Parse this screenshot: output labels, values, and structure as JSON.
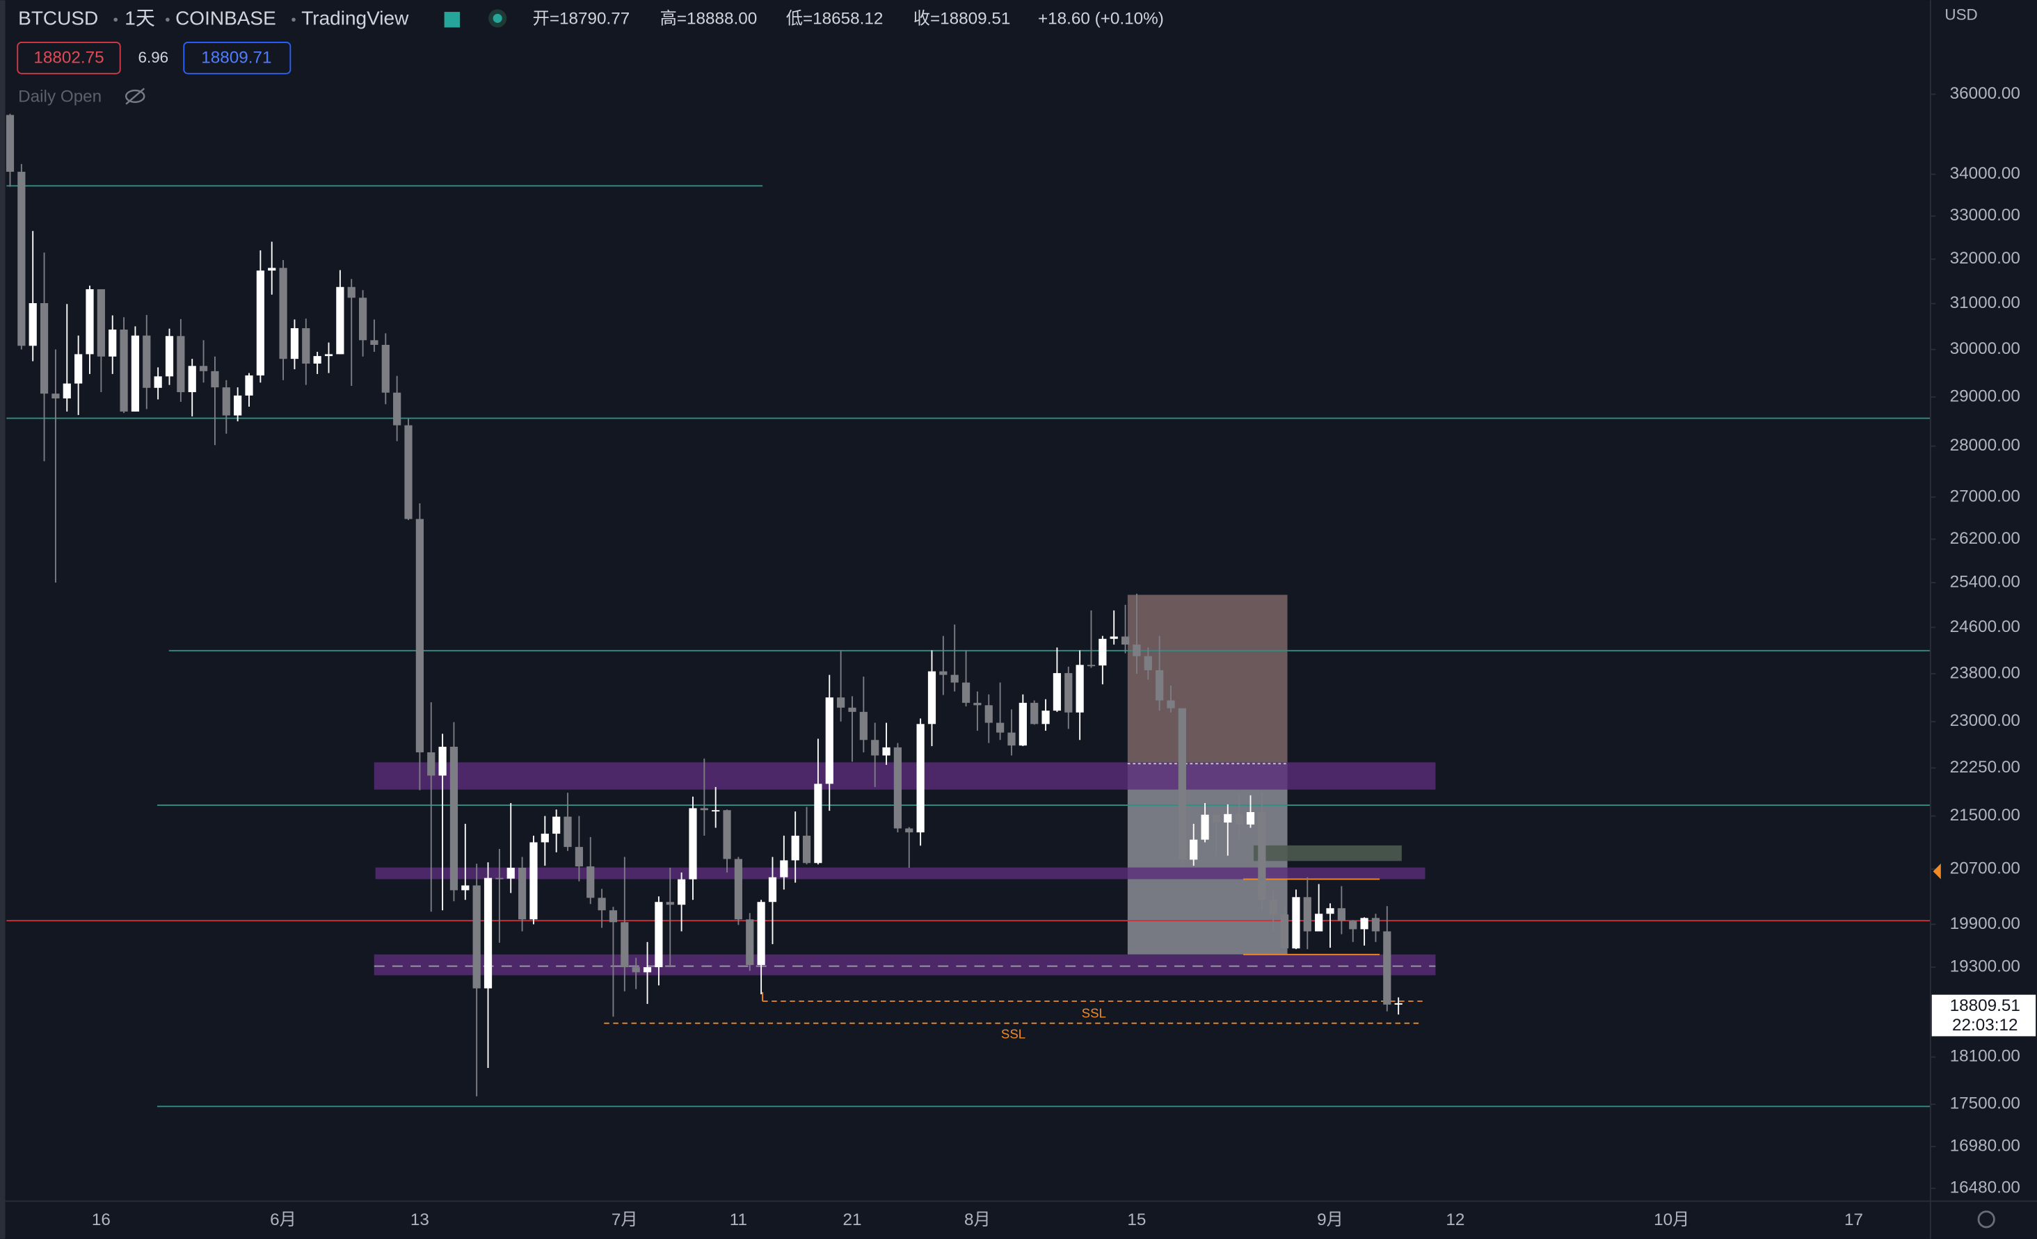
{
  "header": {
    "symbol": "BTCUSD",
    "interval": "1天",
    "exchange": "COINBASE",
    "source": "TradingView",
    "open": "开=18790.77",
    "high": "高=18888.00",
    "low": "低=18658.12",
    "close": "收=18809.51",
    "change": "+18.60 (+0.10%)",
    "sell_price": "18802.75",
    "spread": "6.96",
    "buy_price": "18809.71",
    "indicator": "Daily Open",
    "currency": "USD"
  },
  "price_badge": {
    "price": "18809.51",
    "countdown": "22:03:12"
  },
  "annotations": [
    "SSL",
    "SSL"
  ],
  "chart_data": {
    "type": "candlestick",
    "log": true,
    "grid": false,
    "up_color": "#ffffff",
    "down_color": "#7d7e84",
    "ylim": [
      16330,
      38500
    ],
    "yticks": [
      {
        "value": 36000,
        "label": "36000.00"
      },
      {
        "value": 34000,
        "label": "34000.00"
      },
      {
        "value": 33000,
        "label": "33000.00"
      },
      {
        "value": 32000,
        "label": "32000.00"
      },
      {
        "value": 31000,
        "label": "31000.00"
      },
      {
        "value": 30000,
        "label": "30000.00"
      },
      {
        "value": 29000,
        "label": "29000.00"
      },
      {
        "value": 28000,
        "label": "28000.00"
      },
      {
        "value": 27000,
        "label": "27000.00"
      },
      {
        "value": 26200,
        "label": "26200.00"
      },
      {
        "value": 25400,
        "label": "25400.00"
      },
      {
        "value": 24600,
        "label": "24600.00"
      },
      {
        "value": 23800,
        "label": "23800.00"
      },
      {
        "value": 23000,
        "label": "23000.00"
      },
      {
        "value": 22250,
        "label": "22250.00"
      },
      {
        "value": 21500,
        "label": "21500.00"
      },
      {
        "value": 20700,
        "label": "20700.00"
      },
      {
        "value": 19900,
        "label": "19900.00"
      },
      {
        "value": 19300,
        "label": "19300.00"
      },
      {
        "value": 18100,
        "label": "18100.00"
      },
      {
        "value": 17500,
        "label": "17500.00"
      },
      {
        "value": 16980,
        "label": "16980.00"
      },
      {
        "value": 16480,
        "label": "16480.00"
      }
    ],
    "categories": [
      null,
      null,
      null,
      null,
      null,
      null,
      null,
      null,
      "16",
      null,
      null,
      null,
      null,
      null,
      null,
      null,
      null,
      null,
      null,
      null,
      null,
      null,
      null,
      null,
      "6月",
      null,
      null,
      null,
      null,
      null,
      null,
      null,
      null,
      null,
      null,
      null,
      "13",
      null,
      null,
      null,
      null,
      null,
      null,
      null,
      null,
      null,
      null,
      null,
      null,
      null,
      null,
      null,
      null,
      null,
      "7月",
      null,
      null,
      null,
      null,
      null,
      null,
      null,
      null,
      null,
      "11",
      null,
      null,
      null,
      null,
      null,
      null,
      null,
      null,
      null,
      "21",
      null,
      null,
      null,
      null,
      null,
      null,
      null,
      null,
      null,
      null,
      "8月",
      null,
      null,
      null,
      null,
      null,
      null,
      null,
      null,
      null,
      null,
      null,
      null,
      null,
      "15",
      null,
      null,
      null,
      null,
      null,
      null,
      null,
      null,
      null,
      null,
      null,
      null,
      null,
      null,
      null,
      null,
      "9月",
      null,
      null,
      null,
      null,
      null,
      null,
      null,
      null,
      null,
      null,
      "12",
      null,
      null,
      null,
      null,
      null,
      null,
      null,
      null,
      null,
      null,
      null,
      null,
      null,
      null,
      null,
      null,
      null,
      null,
      "10月",
      null,
      null,
      null,
      null,
      null,
      null,
      null,
      null,
      null,
      null,
      null,
      null,
      null,
      null,
      null,
      "17"
    ],
    "ohlc": [
      [
        35470,
        35500,
        33700,
        34060
      ],
      [
        34060,
        34250,
        30000,
        30080
      ],
      [
        30080,
        32650,
        29750,
        31010
      ],
      [
        31010,
        32150,
        27700,
        29070
      ],
      [
        29070,
        30000,
        25400,
        28970
      ],
      [
        28970,
        30990,
        28700,
        29280
      ],
      [
        29280,
        30300,
        28630,
        29900
      ],
      [
        29900,
        31400,
        29480,
        31320
      ],
      [
        31320,
        31320,
        29100,
        29850
      ],
      [
        29850,
        30740,
        29480,
        30430
      ],
      [
        30430,
        30700,
        28670,
        28700
      ],
      [
        28700,
        30500,
        28700,
        30300
      ],
      [
        30300,
        30750,
        28750,
        29190
      ],
      [
        29190,
        29620,
        28950,
        29430
      ],
      [
        29430,
        30450,
        29250,
        30290
      ],
      [
        30290,
        30660,
        28900,
        29100
      ],
      [
        29100,
        29800,
        28600,
        29650
      ],
      [
        29650,
        30200,
        29300,
        29540
      ],
      [
        29540,
        29850,
        28020,
        29200
      ],
      [
        29200,
        29350,
        28250,
        28620
      ],
      [
        28620,
        29200,
        28500,
        29030
      ],
      [
        29030,
        29500,
        28800,
        29450
      ],
      [
        29450,
        32200,
        29300,
        31740
      ],
      [
        31740,
        32400,
        31200,
        31800
      ],
      [
        31800,
        31980,
        29350,
        29800
      ],
      [
        29800,
        30650,
        29580,
        30460
      ],
      [
        30460,
        30670,
        29250,
        29700
      ],
      [
        29700,
        29950,
        29480,
        29860
      ],
      [
        29860,
        30150,
        29500,
        29900
      ],
      [
        29900,
        31750,
        29900,
        31370
      ],
      [
        31370,
        31550,
        29230,
        31130
      ],
      [
        31130,
        31300,
        29850,
        30200
      ],
      [
        30200,
        30650,
        29950,
        30100
      ],
      [
        30100,
        30350,
        28850,
        29090
      ],
      [
        29090,
        29440,
        28100,
        28420
      ],
      [
        28420,
        28550,
        26560,
        26580
      ],
      [
        26580,
        26880,
        21900,
        22500
      ],
      [
        22500,
        23320,
        20080,
        22130
      ],
      [
        22130,
        22800,
        20100,
        22590
      ],
      [
        22590,
        22990,
        20230,
        20390
      ],
      [
        20390,
        21380,
        20250,
        20460
      ],
      [
        20460,
        20780,
        17600,
        19010
      ],
      [
        19010,
        20800,
        17960,
        20570
      ],
      [
        20570,
        21000,
        19640,
        20560
      ],
      [
        20560,
        21700,
        20350,
        20720
      ],
      [
        20720,
        20880,
        19800,
        19970
      ],
      [
        19970,
        21200,
        19900,
        21100
      ],
      [
        21100,
        21500,
        20750,
        21230
      ],
      [
        21230,
        21600,
        20950,
        21490
      ],
      [
        21490,
        21860,
        20970,
        21030
      ],
      [
        21030,
        21500,
        20520,
        20740
      ],
      [
        20740,
        21180,
        20190,
        20280
      ],
      [
        20280,
        20410,
        19850,
        20100
      ],
      [
        20100,
        20150,
        18630,
        19930
      ],
      [
        19930,
        20880,
        18970,
        19300
      ],
      [
        19300,
        19430,
        19000,
        19230
      ],
      [
        19230,
        19650,
        18800,
        19300
      ],
      [
        19300,
        20300,
        19050,
        20220
      ],
      [
        20220,
        20720,
        19300,
        20180
      ],
      [
        20180,
        20650,
        19800,
        20550
      ],
      [
        20550,
        21800,
        20250,
        21620
      ],
      [
        21620,
        22400,
        21200,
        21590
      ],
      [
        21590,
        21950,
        21320,
        21590
      ],
      [
        21590,
        21600,
        20650,
        20850
      ],
      [
        20850,
        20880,
        19890,
        19970
      ],
      [
        19970,
        20060,
        19250,
        19330
      ],
      [
        19330,
        20250,
        18930,
        20220
      ],
      [
        20220,
        20880,
        19620,
        20580
      ],
      [
        20580,
        21200,
        20400,
        20830
      ],
      [
        20830,
        21570,
        20500,
        21200
      ],
      [
        21200,
        21640,
        20770,
        20790
      ],
      [
        20790,
        22720,
        20770,
        22000
      ],
      [
        22000,
        23780,
        21580,
        23400
      ],
      [
        23400,
        24200,
        23000,
        23230
      ],
      [
        23230,
        23420,
        22350,
        23160
      ],
      [
        23160,
        23750,
        22500,
        22700
      ],
      [
        22700,
        22980,
        21950,
        22450
      ],
      [
        22450,
        22980,
        22300,
        22580
      ],
      [
        22580,
        22650,
        21250,
        21310
      ],
      [
        21310,
        21330,
        20720,
        21250
      ],
      [
        21250,
        23050,
        21050,
        22960
      ],
      [
        22960,
        24200,
        22600,
        23840
      ],
      [
        23840,
        24450,
        23440,
        23780
      ],
      [
        23780,
        24650,
        23500,
        23650
      ],
      [
        23650,
        24200,
        23250,
        23310
      ],
      [
        23310,
        23500,
        22850,
        23270
      ],
      [
        23270,
        23450,
        22650,
        22980
      ],
      [
        22980,
        23650,
        22700,
        22820
      ],
      [
        22820,
        23200,
        22450,
        22610
      ],
      [
        22610,
        23450,
        22600,
        23310
      ],
      [
        23310,
        23350,
        22950,
        22960
      ],
      [
        22960,
        23370,
        22850,
        23180
      ],
      [
        23180,
        24250,
        23160,
        23810
      ],
      [
        23810,
        23920,
        22880,
        23150
      ],
      [
        23150,
        24200,
        22700,
        23950
      ],
      [
        23950,
        24900,
        23900,
        23940
      ],
      [
        23940,
        24450,
        23620,
        24400
      ],
      [
        24400,
        24900,
        24300,
        24440
      ],
      [
        24440,
        25000,
        24150,
        24300
      ],
      [
        24300,
        25200,
        23800,
        24100
      ],
      [
        24100,
        24250,
        23700,
        23860
      ],
      [
        23860,
        24450,
        23180,
        23350
      ],
      [
        23350,
        23600,
        23150,
        23220
      ],
      [
        23220,
        23220,
        20800,
        20840
      ],
      [
        20840,
        21380,
        20750,
        21140
      ],
      [
        21140,
        21700,
        21100,
        21520
      ],
      [
        21520,
        21520,
        20900,
        21400
      ],
      [
        21400,
        21680,
        20900,
        21530
      ],
      [
        21530,
        21850,
        21150,
        21370
      ],
      [
        21370,
        21820,
        21320,
        21560
      ],
      [
        21560,
        21870,
        20100,
        20250
      ],
      [
        20250,
        20400,
        19800,
        20040
      ],
      [
        20040,
        20150,
        19550,
        19560
      ],
      [
        19560,
        20400,
        19550,
        20290
      ],
      [
        20290,
        20580,
        19550,
        19800
      ],
      [
        19800,
        20480,
        19800,
        20050
      ],
      [
        20050,
        20200,
        19570,
        20130
      ],
      [
        20130,
        20450,
        19760,
        19950
      ],
      [
        19950,
        19960,
        19650,
        19830
      ],
      [
        19830,
        20000,
        19600,
        19990
      ],
      [
        19990,
        20050,
        19650,
        19800
      ],
      [
        19800,
        20160,
        18700,
        18790.77
      ],
      [
        18790.77,
        18888,
        18658.12,
        18809.51
      ],
      null,
      null,
      null,
      null,
      null,
      null,
      null,
      null,
      null,
      null,
      null,
      null,
      null,
      null,
      null,
      null,
      null,
      null,
      null,
      null,
      null,
      null,
      null,
      null,
      null,
      null,
      null,
      null,
      null,
      null,
      null,
      null,
      null,
      null,
      null,
      null,
      null,
      null,
      null,
      null
    ]
  }
}
